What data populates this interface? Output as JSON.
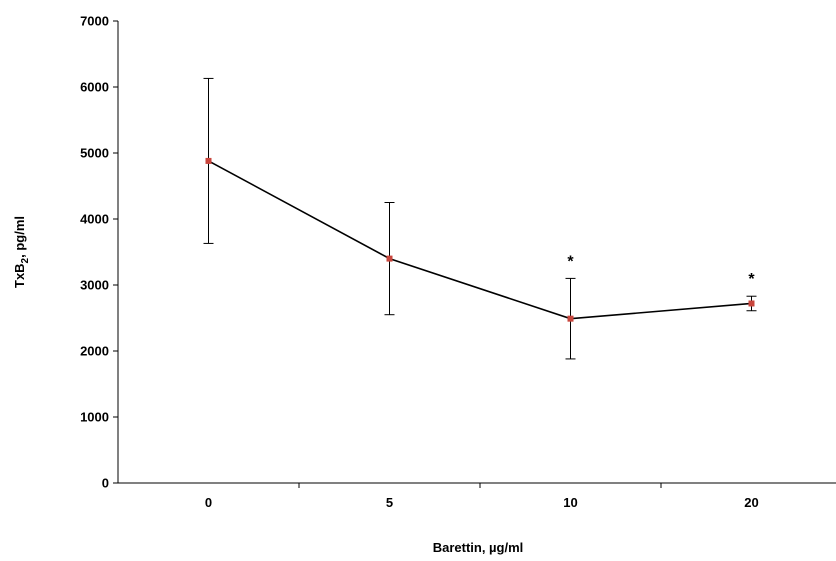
{
  "chart_data": {
    "type": "line",
    "x_categories": [
      "0",
      "5",
      "10",
      "20"
    ],
    "series": [
      {
        "values": [
          4880,
          3400,
          2490,
          2720
        ],
        "error": [
          1250,
          850,
          610,
          110
        ]
      }
    ],
    "significance_markers": [
      "",
      "",
      "*",
      "*"
    ],
    "xlabel": "Barettin, µg/ml",
    "ylabel": {
      "prefix": "TxB",
      "subscript": "2",
      "suffix": ", pg/ml"
    },
    "ylim": [
      0,
      7000
    ],
    "y_ticks": [
      0,
      1000,
      2000,
      3000,
      4000,
      5000,
      6000,
      7000
    ],
    "grid": false,
    "legend": "none",
    "colors": {
      "line": "#000000",
      "marker": "#c9463d",
      "error_bar": "#000000",
      "axis": "#000000"
    }
  }
}
